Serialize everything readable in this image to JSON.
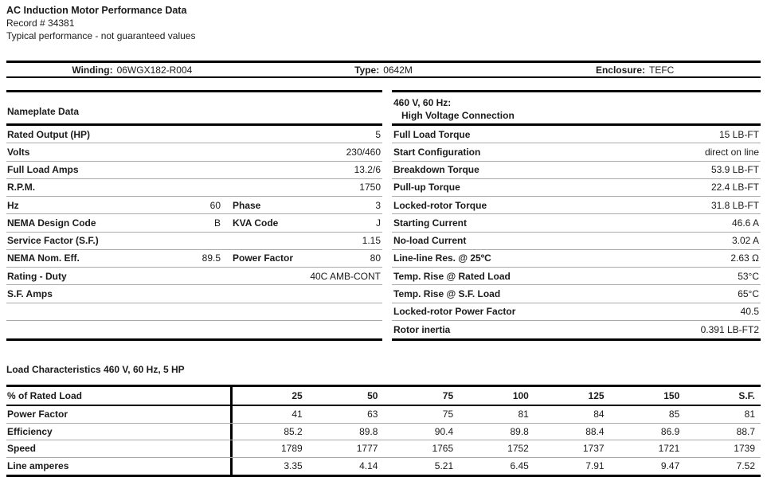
{
  "page": {
    "title": "AC Induction Motor Performance Data",
    "record": "Record # 34381",
    "disclaimer": "Typical performance - not guaranteed values"
  },
  "id_bar": {
    "winding_label": "Winding:",
    "winding_value": "06WGX182-R004",
    "type_label": "Type:",
    "type_value": "0642M",
    "enclosure_label": "Enclosure:",
    "enclosure_value": "TEFC"
  },
  "nameplate": {
    "heading": "Nameplate Data",
    "rows": [
      {
        "label": "Rated Output (HP)",
        "mid": "",
        "label2": "",
        "value": "5"
      },
      {
        "label": "Volts",
        "mid": "",
        "label2": "",
        "value": "230/460"
      },
      {
        "label": "Full Load Amps",
        "mid": "",
        "label2": "",
        "value": "13.2/6"
      },
      {
        "label": "R.P.M.",
        "mid": "",
        "label2": "",
        "value": "1750"
      },
      {
        "label": "Hz",
        "mid": "60",
        "label2": "Phase",
        "value": "3"
      },
      {
        "label": "NEMA Design Code",
        "mid": "B",
        "label2": "KVA Code",
        "value": "J"
      },
      {
        "label": "Service Factor (S.F.)",
        "mid": "",
        "label2": "",
        "value": "1.15"
      },
      {
        "label": "NEMA Nom. Eff.",
        "mid": "89.5",
        "label2": "Power Factor",
        "value": "80"
      },
      {
        "label": "Rating - Duty",
        "mid": "",
        "label2": "",
        "value": "40C AMB-CONT"
      },
      {
        "label": "S.F. Amps",
        "mid": "",
        "label2": "",
        "value": ""
      }
    ]
  },
  "high_voltage": {
    "heading_line1": "460 V, 60 Hz:",
    "heading_line2": "High Voltage Connection",
    "rows": [
      {
        "label": "Full Load Torque",
        "value": "15 LB-FT"
      },
      {
        "label": "Start Configuration",
        "value": "direct on line"
      },
      {
        "label": "Breakdown Torque",
        "value": "53.9 LB-FT"
      },
      {
        "label": "Pull-up Torque",
        "value": "22.4 LB-FT"
      },
      {
        "label": "Locked-rotor Torque",
        "value": "31.8 LB-FT"
      },
      {
        "label": "Starting Current",
        "value": "46.6 A"
      },
      {
        "label": "No-load Current",
        "value": "3.02 A"
      },
      {
        "label": "Line-line Res. @ 25ºC",
        "value": "2.63 Ω"
      },
      {
        "label": "Temp. Rise @ Rated Load",
        "value": "53°C"
      },
      {
        "label": "Temp. Rise @ S.F. Load",
        "value": "65°C"
      },
      {
        "label": "Locked-rotor Power Factor",
        "value": "40.5"
      },
      {
        "label": "Rotor inertia",
        "value": "0.391 LB-FT2"
      }
    ]
  },
  "load": {
    "heading": "Load Characteristics 460 V, 60 Hz, 5 HP",
    "header": [
      "% of Rated Load",
      "25",
      "50",
      "75",
      "100",
      "125",
      "150",
      "S.F."
    ],
    "rows": [
      {
        "label": "Power Factor",
        "values": [
          "41",
          "63",
          "75",
          "81",
          "84",
          "85",
          "81"
        ]
      },
      {
        "label": "Efficiency",
        "values": [
          "85.2",
          "89.8",
          "90.4",
          "89.8",
          "88.4",
          "86.9",
          "88.7"
        ]
      },
      {
        "label": "Speed",
        "values": [
          "1789",
          "1777",
          "1765",
          "1752",
          "1737",
          "1721",
          "1739"
        ]
      },
      {
        "label": "Line amperes",
        "values": [
          "3.35",
          "4.14",
          "5.21",
          "6.45",
          "7.91",
          "9.47",
          "7.52"
        ]
      }
    ]
  }
}
